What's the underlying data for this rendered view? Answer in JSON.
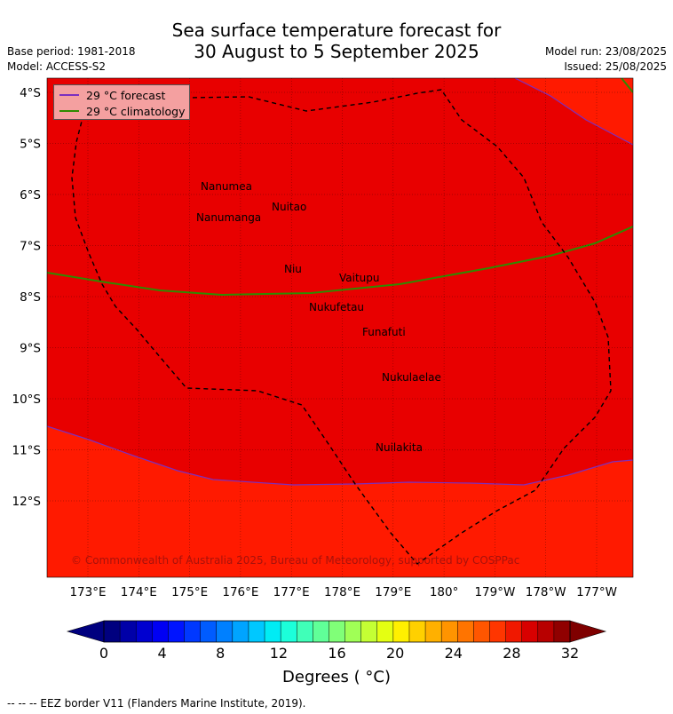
{
  "header": {
    "title_line1": "Sea surface temperature forecast for",
    "title_line2": "30 August to 5 September 2025",
    "base_period": "Base period: 1981-2018",
    "model": "Model: ACCESS-S2",
    "model_run": "Model run: 23/08/2025",
    "issued": "Issued: 25/08/2025"
  },
  "map": {
    "lat_labels": [
      "4°S",
      "5°S",
      "6°S",
      "7°S",
      "8°S",
      "9°S",
      "10°S",
      "11°S",
      "12°S"
    ],
    "lon_labels": [
      "173°E",
      "174°E",
      "175°E",
      "176°E",
      "177°E",
      "178°E",
      "179°E",
      "180°",
      "179°W",
      "178°W",
      "177°W"
    ],
    "islands": [
      "Nanumea",
      "Nuitao",
      "Nanumanga",
      "Niu",
      "Vaitupu",
      "Nukufetau",
      "Funafuti",
      "Nukulaelae",
      "Nuilakita"
    ],
    "copyright": "© Commonwealth of Australia 2025, Bureau of Meteorology, supported by COSPPac",
    "colors": {
      "sst_29_30": "#e80000",
      "sst_28_29": "#ff1a00",
      "forecast_line": "#7b2fbf",
      "climatology_line": "#2e8b00",
      "eez_border": "#000000"
    }
  },
  "legend": {
    "forecast_label": "29 °C  forecast",
    "climatology_label": "29 °C  climatology"
  },
  "colorbar": {
    "ticks": [
      "0",
      "4",
      "8",
      "12",
      "16",
      "20",
      "24",
      "28",
      "32"
    ],
    "title": "Degrees ( °C)",
    "colors": [
      "#00007f",
      "#0000a8",
      "#0000d0",
      "#0000f4",
      "#0014ff",
      "#0038ff",
      "#005cff",
      "#0080ff",
      "#00a4ff",
      "#00c8ff",
      "#00ecf4",
      "#1cffda",
      "#40ffb8",
      "#60ff98",
      "#80ff78",
      "#a0ff56",
      "#c4ff34",
      "#e4ff12",
      "#fff000",
      "#ffd000",
      "#ffb000",
      "#ff9400",
      "#ff7400",
      "#ff5600",
      "#ff3600",
      "#f01800",
      "#d80000",
      "#b80000",
      "#900000"
    ],
    "under_color": "#00007f",
    "over_color": "#7f0000"
  },
  "footer": {
    "eez_note": "--  --  -- EEZ border V11 (Flanders Marine Institute, 2019)."
  }
}
